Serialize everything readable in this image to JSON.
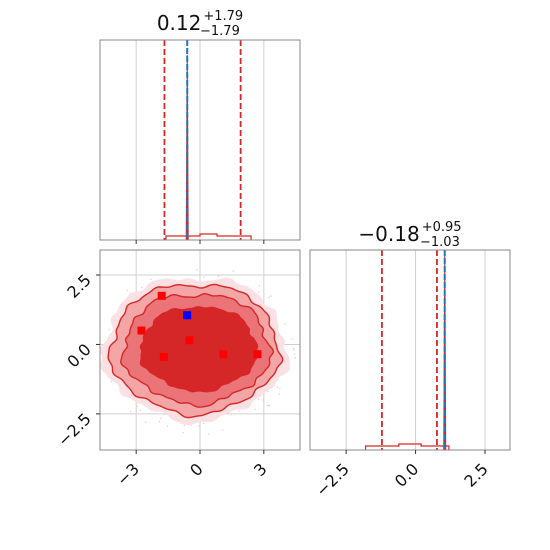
{
  "colors": {
    "posterior": "#d62728",
    "posterior_light": "#f4a6a6",
    "posterior_mid": "#eb7479",
    "truth": "#1f77b4",
    "marker_red": "#ff0000",
    "marker_blue": "#0000ff",
    "grid": "#d0d0d0",
    "frame": "#888888"
  },
  "chart_data": [
    {
      "type": "histogram",
      "panel": "param-1 marginal",
      "title": {
        "value": "0.12",
        "plus": "+1.79",
        "minus": "−1.79"
      },
      "xlim": [
        -4.7,
        4.7
      ],
      "xticks": [
        -3,
        0,
        3
      ],
      "quantiles": [
        -1.67,
        1.91
      ],
      "truth": -0.6,
      "hist_bins": [
        -1.6,
        0.0,
        0.8,
        2.4
      ],
      "hist_counts": [
        0.02,
        0.03,
        0.02
      ]
    },
    {
      "type": "histogram",
      "panel": "param-2 marginal",
      "title": {
        "value": "−0.18",
        "plus": "+0.95",
        "minus": "−1.03"
      },
      "xlim": [
        -3.8,
        3.4
      ],
      "xticks": [
        -2.5,
        0.0,
        2.5
      ],
      "xtick_labels": [
        "−2.5",
        "0.0",
        "2.5"
      ],
      "quantiles": [
        -1.21,
        0.77
      ],
      "truth": 1.05,
      "hist_bins": [
        -1.8,
        -0.6,
        0.2,
        1.2
      ],
      "hist_counts": [
        0.02,
        0.03,
        0.02
      ]
    },
    {
      "type": "contour",
      "panel": "2d joint",
      "xlim": [
        -4.7,
        4.7
      ],
      "ylim": [
        -3.8,
        3.4
      ],
      "xticks": [
        -3,
        0,
        3
      ],
      "xtick_labels": [
        "−3",
        "0",
        "3"
      ],
      "yticks": [
        -2.5,
        0.0,
        2.5
      ],
      "ytick_labels": [
        "−2.5",
        "0.0",
        "2.5"
      ],
      "red_markers": [
        {
          "x": -1.8,
          "y": 1.75
        },
        {
          "x": -2.75,
          "y": 0.5
        },
        {
          "x": -1.7,
          "y": -0.45
        },
        {
          "x": -0.5,
          "y": 0.15
        },
        {
          "x": 1.1,
          "y": -0.35
        },
        {
          "x": 2.7,
          "y": -0.35
        }
      ],
      "blue_markers": [
        {
          "x": -0.6,
          "y": 1.05
        }
      ]
    }
  ]
}
